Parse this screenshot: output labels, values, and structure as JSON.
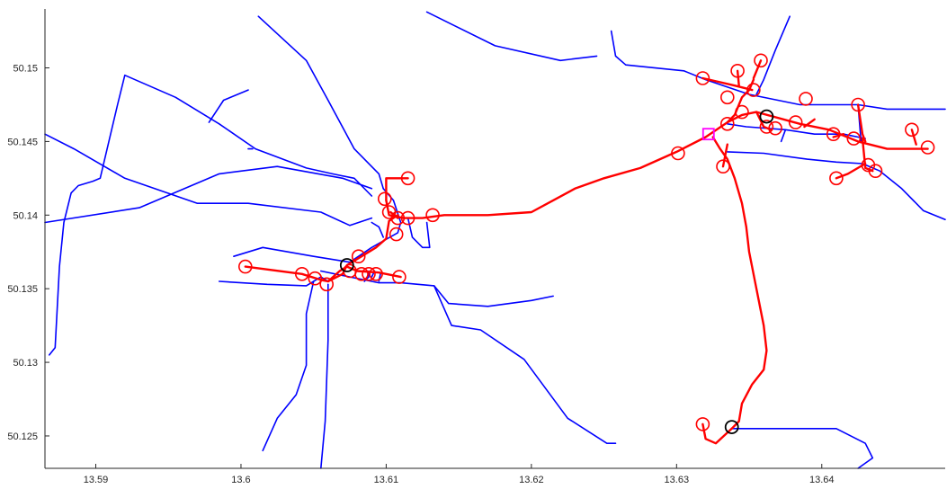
{
  "chart_data": {
    "type": "line",
    "title": "",
    "xlabel": "",
    "ylabel": "",
    "xlim": [
      13.5865,
      13.6485
    ],
    "ylim": [
      50.1228,
      50.154
    ],
    "grid": false,
    "x_ticks": [
      {
        "value": 13.59,
        "label": "13.59"
      },
      {
        "value": 13.6,
        "label": "13.6"
      },
      {
        "value": 13.61,
        "label": "13.61"
      },
      {
        "value": 13.62,
        "label": "13.62"
      },
      {
        "value": 13.63,
        "label": "13.63"
      },
      {
        "value": 13.64,
        "label": "13.64"
      }
    ],
    "y_ticks": [
      {
        "value": 50.125,
        "label": "50.125"
      },
      {
        "value": 50.13,
        "label": "50.13"
      },
      {
        "value": 50.135,
        "label": "50.135"
      },
      {
        "value": 50.14,
        "label": "50.14"
      },
      {
        "value": 50.145,
        "label": "50.145"
      },
      {
        "value": 50.15,
        "label": "50.15"
      }
    ],
    "colors": {
      "network": "#0000ff",
      "route": "#ff0000",
      "node_red": "#ff0000",
      "node_black": "#000000",
      "depot": "#ff00ff"
    },
    "blue_lines": [
      [
        [
          13.5865,
          50.1455
        ],
        [
          13.5885,
          50.1445
        ],
        [
          13.592,
          50.1425
        ],
        [
          13.597,
          50.1408
        ],
        [
          13.6005,
          50.1408
        ],
        [
          13.6055,
          50.1402
        ],
        [
          13.6075,
          50.1393
        ],
        [
          13.609,
          50.1398
        ]
      ],
      [
        [
          13.5865,
          50.1395
        ],
        [
          13.593,
          50.1405
        ],
        [
          13.5985,
          50.1428
        ],
        [
          13.6025,
          50.1433
        ],
        [
          13.607,
          50.1425
        ],
        [
          13.609,
          50.1418
        ]
      ],
      [
        [
          13.5868,
          50.1305
        ],
        [
          13.5872,
          50.131
        ],
        [
          13.5875,
          50.1365
        ],
        [
          13.5878,
          50.1395
        ],
        [
          13.5883,
          50.1415
        ],
        [
          13.5888,
          50.142
        ],
        [
          13.5898,
          50.1423
        ],
        [
          13.5903,
          50.1425
        ],
        [
          13.5915,
          50.1475
        ],
        [
          13.592,
          50.1495
        ],
        [
          13.5955,
          50.148
        ],
        [
          13.5985,
          50.1462
        ],
        [
          13.601,
          50.1445
        ],
        [
          13.6045,
          50.1432
        ],
        [
          13.6063,
          50.1428
        ],
        [
          13.6078,
          50.1425
        ],
        [
          13.609,
          50.1413
        ]
      ],
      [
        [
          13.6012,
          50.1535
        ],
        [
          13.6045,
          50.1505
        ],
        [
          13.606,
          50.1478
        ],
        [
          13.6078,
          50.1445
        ],
        [
          13.6095,
          50.1428
        ],
        [
          13.6098,
          50.1418
        ]
      ],
      [
        [
          13.5978,
          50.1463
        ],
        [
          13.5988,
          50.1478
        ],
        [
          13.6005,
          50.1485
        ]
      ],
      [
        [
          13.6005,
          50.1445
        ],
        [
          13.6008,
          50.1445
        ]
      ],
      [
        [
          13.6098,
          50.1418
        ],
        [
          13.6105,
          50.141
        ],
        [
          13.611,
          50.1395
        ],
        [
          13.6108,
          50.1388
        ],
        [
          13.609,
          50.1378
        ],
        [
          13.6075,
          50.1368
        ],
        [
          13.605,
          50.1372
        ],
        [
          13.6015,
          50.1378
        ],
        [
          13.5995,
          50.1372
        ]
      ],
      [
        [
          13.609,
          50.1395
        ],
        [
          13.6095,
          50.1392
        ],
        [
          13.6098,
          50.1385
        ]
      ],
      [
        [
          13.6115,
          50.1398
        ],
        [
          13.6118,
          50.1385
        ],
        [
          13.6125,
          50.1378
        ],
        [
          13.613,
          50.1378
        ],
        [
          13.6128,
          50.1395
        ]
      ],
      [
        [
          13.6055,
          50.1362
        ],
        [
          13.6085,
          50.1356
        ],
        [
          13.6095,
          50.1354
        ],
        [
          13.611,
          50.1354
        ],
        [
          13.6133,
          50.1352
        ],
        [
          13.6143,
          50.134
        ],
        [
          13.617,
          50.1338
        ],
        [
          13.62,
          50.1342
        ],
        [
          13.6215,
          50.1345
        ]
      ],
      [
        [
          13.5985,
          50.1355
        ],
        [
          13.6018,
          50.1353
        ],
        [
          13.6045,
          50.1352
        ],
        [
          13.6055,
          50.1358
        ],
        [
          13.606,
          50.1355
        ]
      ],
      [
        [
          13.605,
          50.1355
        ],
        [
          13.6045,
          50.1333
        ],
        [
          13.6045,
          50.1298
        ],
        [
          13.6038,
          50.1278
        ],
        [
          13.6025,
          50.1262
        ],
        [
          13.6015,
          50.124
        ]
      ],
      [
        [
          13.606,
          50.1353
        ],
        [
          13.606,
          50.1315
        ],
        [
          13.6058,
          50.126
        ],
        [
          13.6055,
          50.1228
        ]
      ],
      [
        [
          13.6085,
          50.1355
        ],
        [
          13.6088,
          50.1358
        ],
        [
          13.6088,
          50.1362
        ]
      ],
      [
        [
          13.609,
          50.1358
        ],
        [
          13.6092,
          50.1362
        ]
      ],
      [
        [
          13.6095,
          50.1355
        ],
        [
          13.6096,
          50.136
        ]
      ],
      [
        [
          13.6133,
          50.1352
        ],
        [
          13.6145,
          50.1325
        ],
        [
          13.6165,
          50.1322
        ],
        [
          13.6195,
          50.1302
        ],
        [
          13.6225,
          50.1262
        ],
        [
          13.6252,
          50.1245
        ],
        [
          13.6258,
          50.1245
        ]
      ],
      [
        [
          13.6128,
          50.1538
        ],
        [
          13.6175,
          50.1515
        ],
        [
          13.622,
          50.1505
        ],
        [
          13.6245,
          50.1508
        ]
      ],
      [
        [
          13.6255,
          50.1525
        ],
        [
          13.6258,
          50.1508
        ],
        [
          13.6265,
          50.1502
        ],
        [
          13.6305,
          50.1498
        ],
        [
          13.632,
          50.1492
        ],
        [
          13.635,
          50.1482
        ],
        [
          13.6385,
          50.1475
        ],
        [
          13.6425,
          50.1475
        ],
        [
          13.6445,
          50.1472
        ],
        [
          13.647,
          50.1472
        ],
        [
          13.6485,
          50.1472
        ]
      ],
      [
        [
          13.6378,
          50.1535
        ],
        [
          13.6368,
          50.1512
        ],
        [
          13.636,
          50.1492
        ],
        [
          13.6355,
          50.1482
        ]
      ],
      [
        [
          13.6335,
          50.1462
        ],
        [
          13.6348,
          50.146
        ],
        [
          13.6375,
          50.1458
        ],
        [
          13.6395,
          50.1455
        ],
        [
          13.6415,
          50.1455
        ],
        [
          13.643,
          50.1452
        ]
      ],
      [
        [
          13.6375,
          50.1458
        ],
        [
          13.6372,
          50.145
        ]
      ],
      [
        [
          13.6425,
          50.1475
        ],
        [
          13.6427,
          50.145
        ]
      ],
      [
        [
          13.6335,
          50.1443
        ],
        [
          13.636,
          50.1442
        ],
        [
          13.639,
          50.1438
        ],
        [
          13.641,
          50.1436
        ],
        [
          13.6428,
          50.1435
        ],
        [
          13.644,
          50.143
        ],
        [
          13.6455,
          50.1418
        ],
        [
          13.647,
          50.1403
        ],
        [
          13.6485,
          50.1397
        ]
      ],
      [
        [
          13.6338,
          50.1255
        ],
        [
          13.6365,
          50.1255
        ],
        [
          13.6395,
          50.1255
        ],
        [
          13.641,
          50.1255
        ],
        [
          13.643,
          50.1245
        ],
        [
          13.6435,
          50.1235
        ],
        [
          13.6425,
          50.1228
        ]
      ]
    ],
    "red_route": [
      [
        [
          13.6115,
          50.1425
        ],
        [
          13.61,
          50.1425
        ],
        [
          13.61,
          50.141
        ]
      ],
      [
        [
          13.61,
          50.141
        ],
        [
          13.6102,
          50.14
        ],
        [
          13.6112,
          50.1398
        ],
        [
          13.6125,
          50.1398
        ],
        [
          13.614,
          50.14
        ],
        [
          13.617,
          50.14
        ],
        [
          13.62,
          50.1402
        ],
        [
          13.6215,
          50.141
        ],
        [
          13.623,
          50.1418
        ],
        [
          13.625,
          50.1425
        ],
        [
          13.6275,
          50.1432
        ],
        [
          13.63,
          50.1443
        ],
        [
          13.632,
          50.1453
        ],
        [
          13.6335,
          50.1463
        ],
        [
          13.6345,
          50.1468
        ],
        [
          13.6355,
          50.147
        ],
        [
          13.6385,
          50.1462
        ],
        [
          13.6405,
          50.1458
        ],
        [
          13.6425,
          50.145
        ],
        [
          13.6445,
          50.1445
        ],
        [
          13.6473,
          50.1445
        ]
      ],
      [
        [
          13.6003,
          50.1365
        ],
        [
          13.6042,
          50.136
        ],
        [
          13.6055,
          50.1356
        ],
        [
          13.606,
          50.1355
        ],
        [
          13.607,
          50.136
        ],
        [
          13.6073,
          50.1366
        ],
        [
          13.6083,
          50.1372
        ],
        [
          13.6093,
          50.1378
        ],
        [
          13.61,
          50.1384
        ],
        [
          13.6102,
          50.1396
        ],
        [
          13.6108,
          50.14
        ]
      ],
      [
        [
          13.606,
          50.1355
        ],
        [
          13.6068,
          50.1362
        ],
        [
          13.6073,
          50.1365
        ],
        [
          13.608,
          50.1362
        ],
        [
          13.6095,
          50.1361
        ],
        [
          13.611,
          50.1358
        ]
      ],
      [
        [
          13.6103,
          50.1402
        ],
        [
          13.6108,
          50.1398
        ]
      ],
      [
        [
          13.6325,
          50.1453
        ],
        [
          13.633,
          50.1445
        ],
        [
          13.6335,
          50.1438
        ],
        [
          13.634,
          50.1425
        ],
        [
          13.6345,
          50.1408
        ],
        [
          13.6348,
          50.1392
        ],
        [
          13.635,
          50.1375
        ],
        [
          13.6355,
          50.135
        ],
        [
          13.636,
          50.1325
        ],
        [
          13.6362,
          50.1308
        ],
        [
          13.636,
          50.1295
        ],
        [
          13.6352,
          50.1285
        ],
        [
          13.6345,
          50.1272
        ],
        [
          13.6343,
          50.126
        ],
        [
          13.6338,
          50.1255
        ]
      ],
      [
        [
          13.6318,
          50.1258
        ],
        [
          13.632,
          50.1248
        ],
        [
          13.6327,
          50.1245
        ],
        [
          13.6338,
          50.1255
        ]
      ],
      [
        [
          13.6335,
          50.1448
        ],
        [
          13.6332,
          50.1433
        ]
      ],
      [
        [
          13.6335,
          50.1463
        ],
        [
          13.634,
          50.1468
        ],
        [
          13.6345,
          50.148
        ],
        [
          13.635,
          50.1485
        ],
        [
          13.6353,
          50.1492
        ]
      ],
      [
        [
          13.6318,
          50.1493
        ],
        [
          13.634,
          50.1488
        ],
        [
          13.6352,
          50.1485
        ]
      ],
      [
        [
          13.6342,
          50.1498
        ],
        [
          13.6343,
          50.1488
        ]
      ],
      [
        [
          13.6358,
          50.1505
        ],
        [
          13.6353,
          50.1493
        ]
      ],
      [
        [
          13.6395,
          50.1465
        ],
        [
          13.6388,
          50.146
        ]
      ],
      [
        [
          13.6355,
          50.147
        ],
        [
          13.636,
          50.146
        ],
        [
          13.6365,
          50.1458
        ]
      ],
      [
        [
          13.6408,
          50.1453
        ],
        [
          13.6415,
          50.1455
        ]
      ],
      [
        [
          13.6425,
          50.1475
        ],
        [
          13.6428,
          50.1455
        ],
        [
          13.643,
          50.145
        ]
      ],
      [
        [
          13.6428,
          50.1452
        ],
        [
          13.643,
          50.1432
        ],
        [
          13.6435,
          50.143
        ]
      ],
      [
        [
          13.641,
          50.1425
        ],
        [
          13.6418,
          50.1428
        ],
        [
          13.643,
          50.1435
        ]
      ],
      [
        [
          13.6462,
          50.1458
        ],
        [
          13.6465,
          50.1448
        ]
      ]
    ],
    "red_nodes": [
      [
        13.6115,
        50.1425
      ],
      [
        13.6099,
        50.1411
      ],
      [
        13.6102,
        50.1402
      ],
      [
        13.6108,
        50.1398
      ],
      [
        13.6115,
        50.1398
      ],
      [
        13.6132,
        50.14
      ],
      [
        13.6107,
        50.1387
      ],
      [
        13.6003,
        50.1365
      ],
      [
        13.6042,
        50.136
      ],
      [
        13.6051,
        50.1357
      ],
      [
        13.6059,
        50.1353
      ],
      [
        13.6081,
        50.1372
      ],
      [
        13.6075,
        50.1362
      ],
      [
        13.6083,
        50.136
      ],
      [
        13.6088,
        50.136
      ],
      [
        13.6093,
        50.136
      ],
      [
        13.6109,
        50.1358
      ],
      [
        13.6301,
        50.1442
      ],
      [
        13.6318,
        50.1493
      ],
      [
        13.6335,
        50.1462
      ],
      [
        13.6335,
        50.148
      ],
      [
        13.6342,
        50.1498
      ],
      [
        13.6358,
        50.1505
      ],
      [
        13.6353,
        50.1485
      ],
      [
        13.6345,
        50.147
      ],
      [
        13.6362,
        50.146
      ],
      [
        13.6368,
        50.1459
      ],
      [
        13.6382,
        50.1463
      ],
      [
        13.6389,
        50.1479
      ],
      [
        13.6408,
        50.1455
      ],
      [
        13.6425,
        50.1475
      ],
      [
        13.6422,
        50.1452
      ],
      [
        13.641,
        50.1425
      ],
      [
        13.6432,
        50.1434
      ],
      [
        13.6437,
        50.143
      ],
      [
        13.6462,
        50.1458
      ],
      [
        13.6473,
        50.1446
      ],
      [
        13.6332,
        50.1433
      ],
      [
        13.6318,
        50.1258
      ]
    ],
    "black_nodes": [
      [
        13.6073,
        50.1366
      ],
      [
        13.6362,
        50.1467
      ],
      [
        13.6338,
        50.1256
      ]
    ],
    "depot_nodes": [
      [
        13.6322,
        50.1455
      ]
    ]
  }
}
